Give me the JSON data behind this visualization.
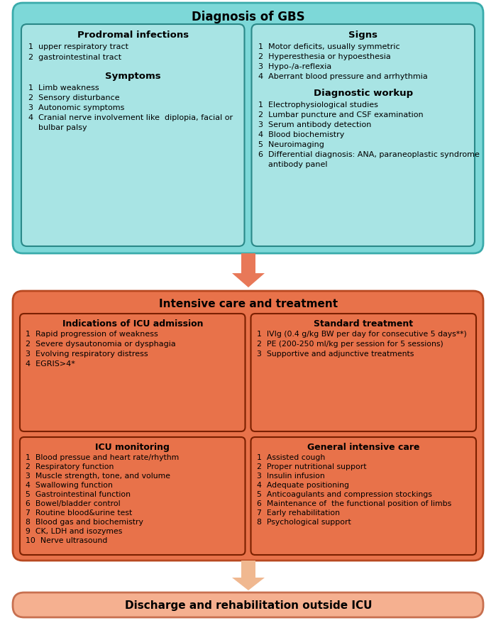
{
  "title_top": "Diagnosis of GBS",
  "top_bg": "#7dd8d8",
  "top_border": "#3aabab",
  "inner_bg_top": "#a8e4e4",
  "inner_border_top": "#2a8888",
  "mid_title": "Intensive care and treatment",
  "mid_bg": "#e8724a",
  "mid_border": "#b84820",
  "inner_border_mid": "#7a2000",
  "bottom_title": "Discharge and rehabilitation outside ICU",
  "bottom_bg": "#f5b090",
  "bottom_border": "#c87050",
  "arrow1_color": "#e87858",
  "arrow2_color": "#f0b890",
  "box1_title": "Prodromal infections",
  "box1_items": [
    "1  upper respiratory tract",
    "2  gastrointestinal tract"
  ],
  "box2_title": "Signs",
  "box2_items": [
    "1  Motor deficits, usually symmetric",
    "2  Hyperesthesia or hypoesthesia",
    "3  Hypo-/a-reflexia",
    "4  Aberrant blood pressure and arrhythmia"
  ],
  "box3_title": "Symptoms",
  "box3_items": [
    "1  Limb weakness",
    "2  Sensory disturbance",
    "3  Autonomic symptoms",
    "4  Cranial nerve involvement like  diplopia, facial or",
    "    bulbar palsy"
  ],
  "box4_title": "Diagnostic workup",
  "box4_items": [
    "1  Electrophysiological studies",
    "2  Lumbar puncture and CSF examination",
    "3  Serum antibody detection",
    "4  Blood biochemistry",
    "5  Neuroimaging",
    "6  Differential diagnosis: ANA, paraneoplastic syndrome",
    "    antibody panel"
  ],
  "box5_title": "Indications of ICU admission",
  "box5_items": [
    "1  Rapid progression of weakness",
    "2  Severe dysautonomia or dysphagia",
    "3  Evolving respiratory distress",
    "4  EGRIS>4*"
  ],
  "box6_title": "Standard treatment",
  "box6_items": [
    "1  IVIg (0.4 g/kg BW per day for consecutive 5 days**)",
    "2  PE (200-250 ml/kg per session for 5 sessions)",
    "3  Supportive and adjunctive treatments"
  ],
  "box7_title": "ICU monitoring",
  "box7_items": [
    "1  Blood pressue and heart rate/rhythm",
    "2  Respiratory function",
    "3  Muscle strength, tone, and volume",
    "4  Swallowing function",
    "5  Gastrointestinal function",
    "6  Bowel/bladder control",
    "7  Routine blood&urine test",
    "8  Blood gas and biochemistry",
    "9  CK, LDH and isozymes",
    "10  Nerve ultrasound"
  ],
  "box8_title": "General intensive care",
  "box8_items": [
    "1  Assisted cough",
    "2  Proper nutritional support",
    "3  Insulin infusion",
    "4  Adequate positioning",
    "5  Anticoagulants and compression stockings",
    "6  Maintenance of  the functional position of limbs",
    "7  Early rehabilitation",
    "8  Psychological support"
  ]
}
